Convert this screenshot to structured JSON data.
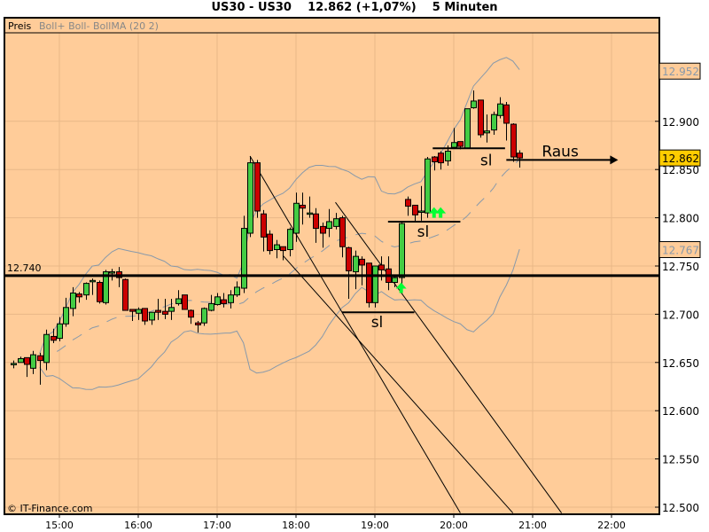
{
  "header": {
    "instrument": "US30 - US30",
    "price": "12.862 (+1,07%)",
    "interval": "5 Minuten"
  },
  "legend": {
    "label": "Preis",
    "indicator": "Boll+ Boll- BollMA (20 2)"
  },
  "copyright": "© IT-Finance.com",
  "colors": {
    "background": "#FFCC99",
    "grid": "#E8B888",
    "up": "#44CC44",
    "down": "#CC0000",
    "bands": "#8899AA",
    "current_price_box": "#FFCC00",
    "signal_arrow": "#00FF33"
  },
  "chart_data": {
    "type": "candlestick",
    "title": "US30 - US30",
    "interval_minutes": 5,
    "xlim": [
      "14:15",
      "22:30"
    ],
    "ylim": [
      12495,
      12990
    ],
    "x_ticks": [
      "15:00",
      "16:00",
      "17:00",
      "18:00",
      "19:00",
      "20:00",
      "21:00",
      "22:00"
    ],
    "y_ticks": [
      "12.500",
      "12.550",
      "12.600",
      "12.650",
      "12.700",
      "12.750",
      "12.800",
      "12.850",
      "12.900"
    ],
    "grid": true,
    "axis_side": "right",
    "indicator": {
      "name": "Bollinger Bands",
      "period": 20,
      "stddev": 2
    },
    "axis_markers": [
      {
        "label": "12.952",
        "value": 12952,
        "style": "upper-band"
      },
      {
        "label": "12.862",
        "value": 12862,
        "style": "current-price"
      },
      {
        "label": "12.767",
        "value": 12767,
        "style": "lower-band"
      }
    ],
    "first_time": "14:25",
    "candles": [
      [
        12648,
        12652,
        12644,
        12649
      ],
      [
        12650,
        12656,
        12650,
        12654
      ],
      [
        12655,
        12655,
        12635,
        12648
      ],
      [
        12644,
        12662,
        12638,
        12658
      ],
      [
        12657,
        12660,
        12627,
        12652
      ],
      [
        12650,
        12684,
        12642,
        12679
      ],
      [
        12677,
        12685,
        12670,
        12673
      ],
      [
        12675,
        12697,
        12672,
        12690
      ],
      [
        12690,
        12717,
        12687,
        12707
      ],
      [
        12706,
        12728,
        12698,
        12722
      ],
      [
        12721,
        12723,
        12712,
        12718
      ],
      [
        12720,
        12733,
        12715,
        12732
      ],
      [
        12734,
        12737,
        12720,
        12735
      ],
      [
        12733,
        12735,
        12711,
        12713
      ],
      [
        12712,
        12746,
        12710,
        12744
      ],
      [
        12743,
        12747,
        12735,
        12744
      ],
      [
        12744,
        12749,
        12728,
        12738
      ],
      [
        12736,
        12737,
        12704,
        12704
      ],
      [
        12705,
        12705,
        12693,
        12703
      ],
      [
        12701,
        12707,
        12694,
        12705
      ],
      [
        12706,
        12706,
        12689,
        12693
      ],
      [
        12694,
        12702,
        12689,
        12702
      ],
      [
        12704,
        12716,
        12694,
        12702
      ],
      [
        12703,
        12716,
        12695,
        12700
      ],
      [
        12703,
        12716,
        12694,
        12707
      ],
      [
        12711,
        12725,
        12709,
        12716
      ],
      [
        12720,
        12720,
        12705,
        12705
      ],
      [
        12704,
        12705,
        12690,
        12697
      ],
      [
        12691,
        12693,
        12681,
        12689
      ],
      [
        12691,
        12707,
        12688,
        12706
      ],
      [
        12704,
        12720,
        12703,
        12711
      ],
      [
        12710,
        12722,
        12709,
        12718
      ],
      [
        12715,
        12722,
        12707,
        12711
      ],
      [
        12712,
        12725,
        12706,
        12720
      ],
      [
        12720,
        12734,
        12718,
        12728
      ],
      [
        12727,
        12802,
        12722,
        12789
      ],
      [
        12784,
        12864,
        12780,
        12857
      ],
      [
        12857,
        12860,
        12800,
        12807
      ],
      [
        12804,
        12808,
        12765,
        12780
      ],
      [
        12783,
        12787,
        12762,
        12766
      ],
      [
        12767,
        12777,
        12758,
        12772
      ],
      [
        12770,
        12770,
        12756,
        12766
      ],
      [
        12767,
        12790,
        12760,
        12788
      ],
      [
        12784,
        12826,
        12775,
        12815
      ],
      [
        12813,
        12826,
        12793,
        12810
      ],
      [
        12805,
        12822,
        12800,
        12805
      ],
      [
        12804,
        12810,
        12774,
        12789
      ],
      [
        12791,
        12795,
        12769,
        12784
      ],
      [
        12789,
        12809,
        12780,
        12796
      ],
      [
        12791,
        12805,
        12788,
        12799
      ],
      [
        12800,
        12802,
        12759,
        12770
      ],
      [
        12769,
        12770,
        12716,
        12745
      ],
      [
        12744,
        12766,
        12726,
        12760
      ],
      [
        12757,
        12760,
        12730,
        12751
      ],
      [
        12753,
        12753,
        12707,
        12712
      ],
      [
        12712,
        12750,
        12707,
        12750
      ],
      [
        12751,
        12760,
        12735,
        12746
      ],
      [
        12747,
        12760,
        12725,
        12733
      ],
      [
        12733,
        12740,
        12728,
        12738
      ],
      [
        12738,
        12796,
        12730,
        12794
      ],
      [
        12819,
        12822,
        12802,
        12812
      ],
      [
        12813,
        12813,
        12796,
        12803
      ],
      [
        12806,
        12833,
        12797,
        12807
      ],
      [
        12805,
        12863,
        12800,
        12861
      ],
      [
        12863,
        12864,
        12849,
        12858
      ],
      [
        12867,
        12869,
        12850,
        12857
      ],
      [
        12859,
        12875,
        12854,
        12869
      ],
      [
        12873,
        12893,
        12872,
        12878
      ],
      [
        12879,
        12879,
        12871,
        12874
      ],
      [
        12872,
        12913,
        12872,
        12913
      ],
      [
        12914,
        12932,
        12913,
        12921
      ],
      [
        12922,
        12922,
        12883,
        12886
      ],
      [
        12888,
        12907,
        12878,
        12890
      ],
      [
        12891,
        12910,
        12886,
        12907
      ],
      [
        12906,
        12925,
        12903,
        12918
      ],
      [
        12917,
        12920,
        12880,
        12898
      ],
      [
        12897,
        12898,
        12858,
        12863
      ],
      [
        12867,
        12870,
        12852,
        12862
      ]
    ],
    "candle_format": [
      "open",
      "high",
      "low",
      "close"
    ],
    "annotations": {
      "hlines": [
        {
          "label": "12.740",
          "value": 12740
        }
      ],
      "trendlines": [
        {
          "from": [
            "17:25",
            12864
          ],
          "to": [
            "20:05",
            12494
          ]
        },
        {
          "from": [
            "17:50",
            12761
          ],
          "to": [
            "20:45",
            12494
          ]
        },
        {
          "from": [
            "18:30",
            12816
          ],
          "to": [
            "21:22",
            12494
          ]
        }
      ],
      "stop_levels": [
        {
          "label": "sl",
          "value": 12702,
          "from": "18:35",
          "to": "19:30"
        },
        {
          "label": "sl",
          "value": 12796,
          "from": "19:10",
          "to": "20:05"
        },
        {
          "label": "sl",
          "value": 12872,
          "from": "19:44",
          "to": "20:39"
        }
      ],
      "exit_arrow": {
        "label": "Raus",
        "value": 12860,
        "from": "20:40",
        "to": "22:05"
      },
      "buy_signals": [
        [
          "19:20",
          12722
        ],
        [
          "19:45",
          12800
        ],
        [
          "19:50",
          12800
        ]
      ]
    }
  }
}
